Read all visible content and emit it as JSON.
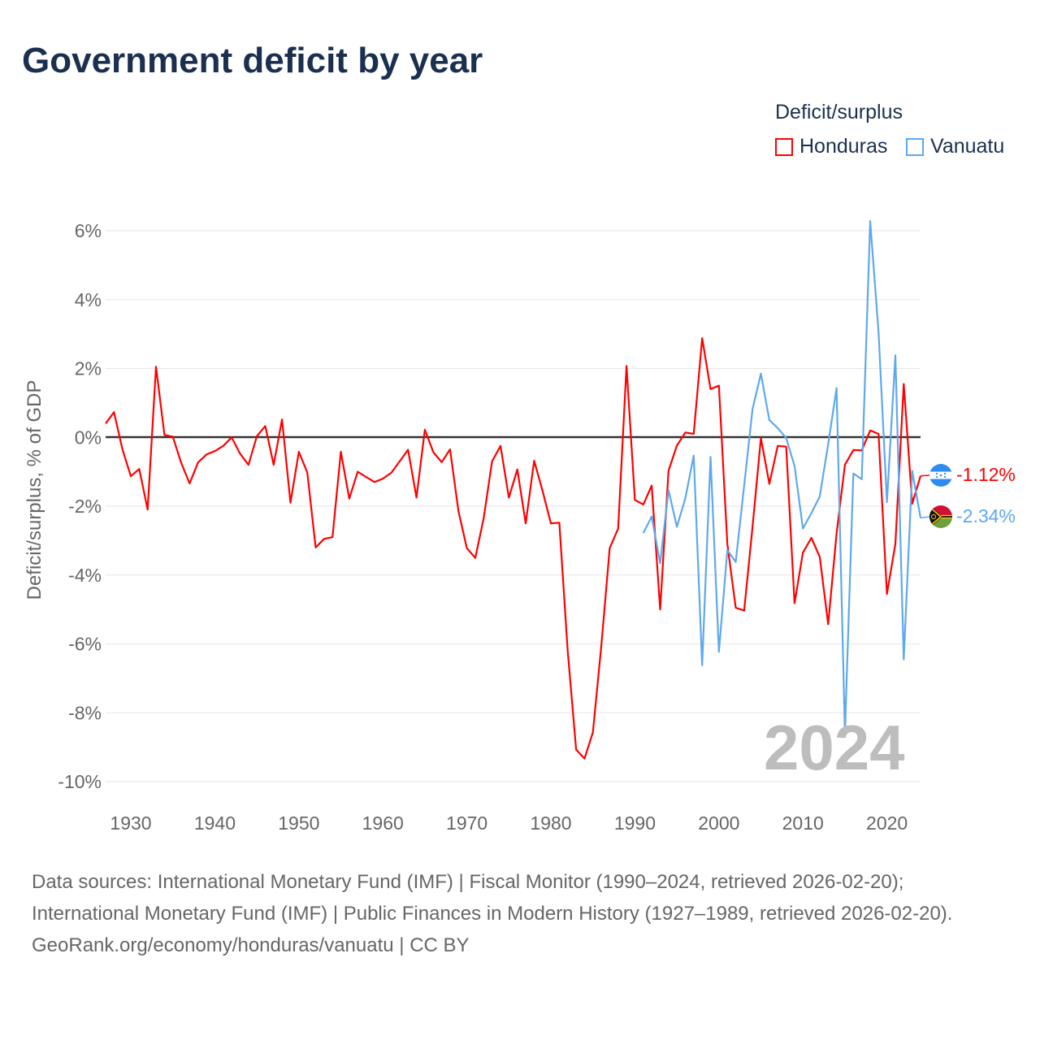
{
  "title": "Government deficit by year",
  "legend": {
    "title": "Deficit/surplus",
    "items": [
      {
        "name": "Honduras",
        "color": "#ff0000"
      },
      {
        "name": "Vanuatu",
        "color": "#5fa8ec"
      }
    ]
  },
  "year_label": "2024",
  "end_labels": {
    "honduras": "-1.12%",
    "vanuatu": "-2.34%"
  },
  "footer": {
    "sources": "Data sources: International Monetary Fund (IMF) | Fiscal Monitor (1990–2024, retrieved 2026-02-20); International Monetary Fund (IMF) | Public Finances in Modern History (1927–1989, retrieved 2026-02-20).",
    "credit": "GeoRank.org/economy/honduras/vanuatu | CC BY"
  },
  "chart_data": {
    "type": "line",
    "title": "Government deficit by year",
    "xlabel": "",
    "ylabel": "Deficit/surplus, % of GDP",
    "xlim": [
      1927,
      2024
    ],
    "ylim": [
      -10,
      6
    ],
    "xticks": [
      1930,
      1940,
      1950,
      1960,
      1970,
      1980,
      1990,
      2000,
      2010,
      2020
    ],
    "yticks": [
      6,
      4,
      2,
      0,
      -2,
      -4,
      -6,
      -8,
      -10
    ],
    "ytick_labels": [
      "6%",
      "4%",
      "2%",
      "0%",
      "-2%",
      "-4%",
      "-6%",
      "-8%",
      "-10%"
    ],
    "grid": true,
    "legend_position": "top-right",
    "series": [
      {
        "name": "Honduras",
        "color": "#ff0000",
        "start_year": 1927,
        "values": [
          0.4,
          0.73,
          -0.35,
          -1.13,
          -0.92,
          -2.1,
          2.05,
          0.07,
          0.02,
          -0.75,
          -1.34,
          -0.73,
          -0.5,
          -0.4,
          -0.25,
          0,
          -0.47,
          -0.8,
          0.03,
          0.33,
          -0.8,
          0.52,
          -1.9,
          -0.42,
          -1.02,
          -3.2,
          -2.95,
          -2.9,
          -0.42,
          -1.78,
          -1.0,
          -1.15,
          -1.3,
          -1.2,
          -1.03,
          -0.7,
          -0.36,
          -1.75,
          0.22,
          -0.43,
          -0.72,
          -0.35,
          -2.15,
          -3.22,
          -3.5,
          -2.35,
          -0.7,
          -0.25,
          -1.75,
          -0.93,
          -2.5,
          -0.68,
          -1.55,
          -2.5,
          -2.48,
          -6.2,
          -9.07,
          -9.33,
          -8.57,
          -6.05,
          -3.22,
          -2.65,
          2.07,
          -1.82,
          -1.95,
          -1.4,
          -5.0,
          -0.97,
          -0.24,
          0.14,
          0.1,
          2.88,
          1.4,
          1.5,
          -3.1,
          -4.95,
          -5.03,
          -2.6,
          -0.02,
          -1.35,
          -0.25,
          -0.27,
          -4.82,
          -3.35,
          -2.92,
          -3.47,
          -5.43,
          -2.8,
          -0.8,
          -0.37,
          -0.38,
          0.2,
          0.1,
          -4.55,
          -3.1,
          1.55,
          -1.93,
          -1.12
        ]
      },
      {
        "name": "Vanuatu",
        "color": "#5fa8ec",
        "start_year": 1991,
        "values": [
          -2.78,
          -2.3,
          -3.66,
          -1.53,
          -2.6,
          -1.77,
          -0.53,
          -6.62,
          -0.57,
          -6.23,
          -3.28,
          -3.62,
          -1.4,
          0.82,
          1.85,
          0.5,
          0.27,
          -0.02,
          -0.83,
          -2.65,
          -2.2,
          -1.72,
          -0.2,
          1.43,
          -8.6,
          -1.05,
          -1.22,
          6.28,
          3.05,
          -1.88,
          2.38,
          -6.45,
          -0.97,
          -2.34
        ]
      }
    ]
  }
}
